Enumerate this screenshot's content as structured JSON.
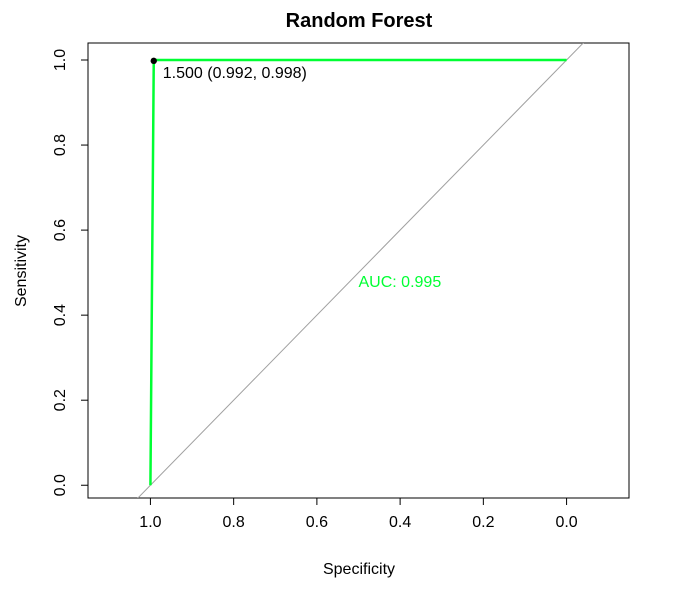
{
  "chart_data": {
    "type": "line",
    "title": "Random Forest",
    "xlabel": "Specificity",
    "ylabel": "Sensitivity",
    "xlim": [
      1.15,
      -0.15
    ],
    "ylim": [
      -0.03,
      1.04
    ],
    "x_ticks": [
      1.0,
      0.8,
      0.6,
      0.4,
      0.2,
      0.0
    ],
    "x_tick_labels": [
      "1.0",
      "0.8",
      "0.6",
      "0.4",
      "0.2",
      "0.0"
    ],
    "y_ticks": [
      0.0,
      0.2,
      0.4,
      0.6,
      0.8,
      1.0
    ],
    "y_tick_labels": [
      "0.0",
      "0.2",
      "0.4",
      "0.6",
      "0.8",
      "1.0"
    ],
    "grid": false,
    "series": [
      {
        "color": "#00ff33",
        "x": [
          1.0,
          0.992,
          0.992,
          0.0
        ],
        "y": [
          0.0,
          0.998,
          1.0,
          1.0
        ]
      }
    ],
    "reference_line": {
      "color": "#a0a0a0",
      "from": [
        1.0,
        0.0
      ],
      "to": [
        0.0,
        1.0
      ]
    },
    "threshold_point": {
      "x": 0.992,
      "y": 0.998,
      "label": "1.500 (0.992, 0.998)"
    },
    "auc_label": {
      "text": "AUC: 0.995",
      "x": 0.5,
      "y": 0.48,
      "color": "#00ff33"
    }
  }
}
